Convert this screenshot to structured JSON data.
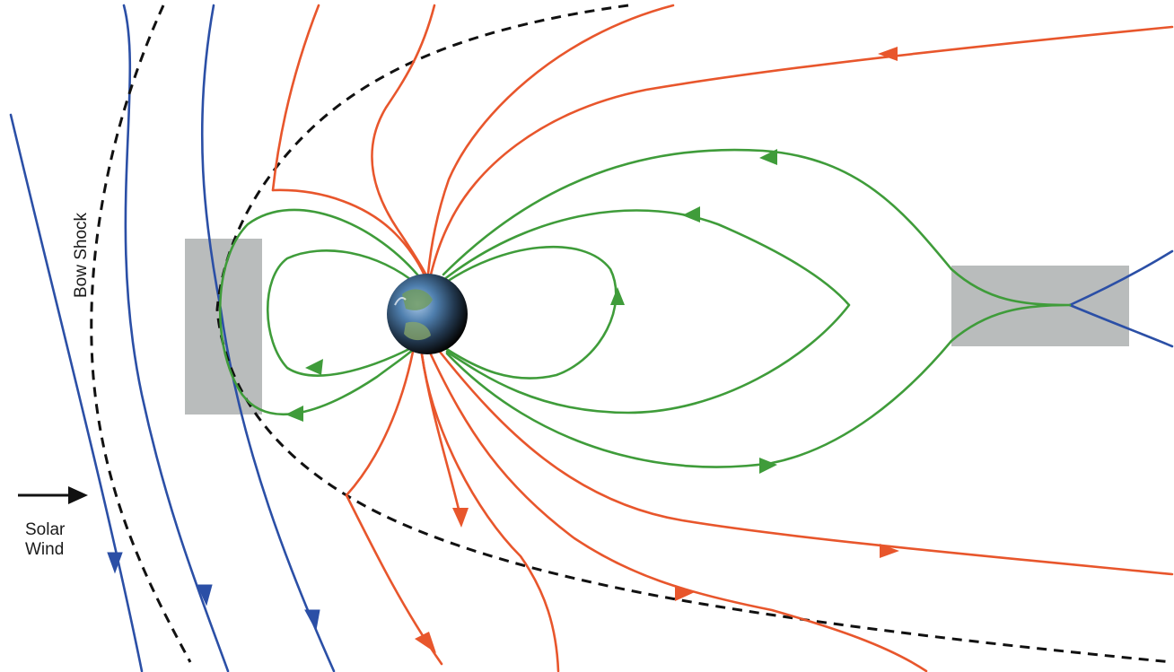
{
  "labels": {
    "solar_wind_line1": "Solar",
    "solar_wind_line2": "Wind",
    "bow_shock": "Bow Shock"
  },
  "colors": {
    "background": "#ffffff",
    "imf_lines": "#2b4fa6",
    "open_field_lines": "#e8562c",
    "closed_field_lines": "#3f9c3a",
    "bow_shock": "#111111",
    "reconnection_regions": "#b9bcbc",
    "solar_wind_arrow": "#111111"
  },
  "icons": {
    "planet": "earth-globe-icon",
    "arrow": "right-arrow-icon"
  }
}
